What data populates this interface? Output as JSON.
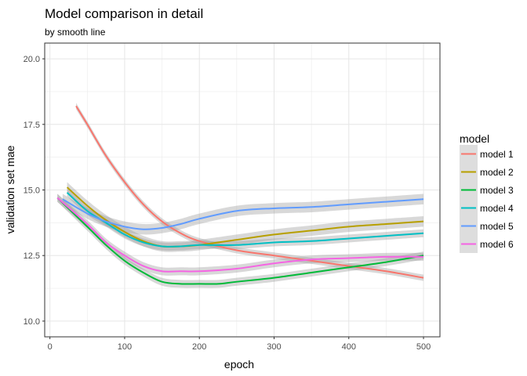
{
  "chart_data": {
    "type": "line",
    "title": "Model comparison in detail",
    "subtitle": "by smooth line",
    "xlabel": "epoch",
    "ylabel": "validation set mae",
    "xlim": [
      -7,
      522
    ],
    "ylim": [
      9.4,
      20.6
    ],
    "xticks": [
      0,
      100,
      200,
      300,
      400,
      500
    ],
    "yticks": [
      10.0,
      12.5,
      15.0,
      17.5,
      20.0
    ],
    "xtick_labels": [
      "0",
      "100",
      "200",
      "300",
      "400",
      "500"
    ],
    "ytick_labels": [
      "10.0",
      "12.5",
      "15.0",
      "17.5",
      "20.0"
    ],
    "grid": true,
    "legend": {
      "title": "model",
      "position": "right"
    },
    "series": [
      {
        "name": "model 1",
        "color": "#F8766D",
        "band": 0.12,
        "x": [
          35,
          50,
          75,
          100,
          125,
          150,
          175,
          200,
          250,
          300,
          350,
          400,
          450,
          500
        ],
        "y": [
          18.2,
          17.5,
          16.3,
          15.3,
          14.45,
          13.8,
          13.35,
          13.05,
          12.7,
          12.5,
          12.3,
          12.1,
          11.9,
          11.65
        ]
      },
      {
        "name": "model 2",
        "color": "#B79F00",
        "band": 0.2,
        "x": [
          23,
          50,
          75,
          100,
          125,
          150,
          175,
          200,
          250,
          300,
          350,
          400,
          450,
          500
        ],
        "y": [
          15.1,
          14.4,
          13.85,
          13.4,
          13.05,
          12.85,
          12.85,
          12.9,
          13.1,
          13.3,
          13.45,
          13.6,
          13.7,
          13.8
        ]
      },
      {
        "name": "model 3",
        "color": "#00BA38",
        "band": 0.15,
        "x": [
          10,
          50,
          75,
          100,
          125,
          150,
          175,
          200,
          225,
          250,
          300,
          350,
          400,
          450,
          500
        ],
        "y": [
          14.7,
          13.6,
          12.9,
          12.3,
          11.85,
          11.5,
          11.42,
          11.42,
          11.42,
          11.5,
          11.65,
          11.85,
          12.05,
          12.25,
          12.5
        ]
      },
      {
        "name": "model 4",
        "color": "#00BFC4",
        "band": 0.15,
        "x": [
          23,
          50,
          75,
          100,
          125,
          150,
          175,
          200,
          250,
          300,
          350,
          400,
          450,
          500
        ],
        "y": [
          14.9,
          14.2,
          13.75,
          13.3,
          13.0,
          12.85,
          12.85,
          12.9,
          12.9,
          13.0,
          13.05,
          13.15,
          13.25,
          13.35
        ]
      },
      {
        "name": "model 5",
        "color": "#619CFF",
        "band": 0.2,
        "x": [
          17,
          50,
          75,
          100,
          125,
          150,
          175,
          200,
          250,
          300,
          350,
          400,
          450,
          500
        ],
        "y": [
          14.65,
          14.1,
          13.8,
          13.6,
          13.5,
          13.55,
          13.7,
          13.9,
          14.2,
          14.3,
          14.35,
          14.45,
          14.55,
          14.65
        ]
      },
      {
        "name": "model 6",
        "color": "#F564E3",
        "band": 0.15,
        "x": [
          10,
          50,
          75,
          100,
          125,
          150,
          175,
          200,
          250,
          300,
          350,
          400,
          450,
          500
        ],
        "y": [
          14.7,
          13.7,
          13.0,
          12.5,
          12.1,
          11.9,
          11.9,
          11.9,
          12.0,
          12.2,
          12.35,
          12.4,
          12.45,
          12.45
        ]
      }
    ]
  }
}
